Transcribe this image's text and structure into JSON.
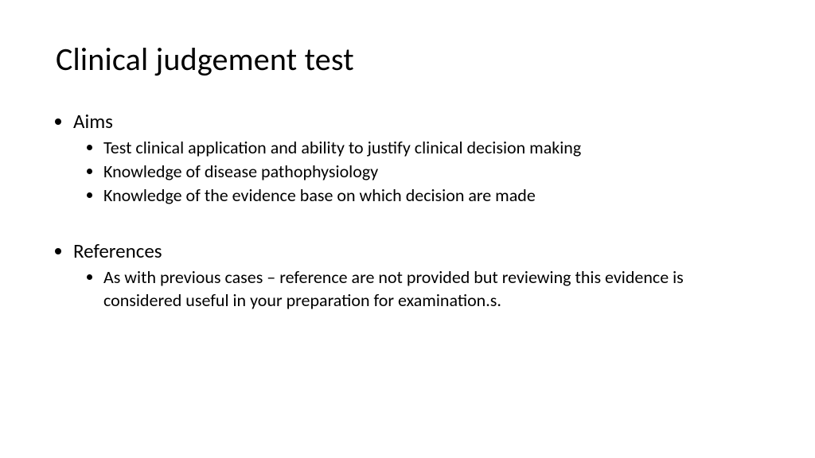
{
  "slide": {
    "title": "Clinical judgement test",
    "title_fontsize": 40,
    "title_color": "#000000",
    "background_color": "#ffffff",
    "body_font": "Calibri",
    "bullets": [
      {
        "label": "Aims",
        "fontsize": 25,
        "children": [
          {
            "label": "Test clinical application and ability to justify clinical decision making",
            "fontsize": 22
          },
          {
            "label": "Knowledge of disease pathophysiology",
            "fontsize": 22
          },
          {
            "label": "Knowledge of the evidence base on which decision are made",
            "fontsize": 22
          }
        ]
      },
      {
        "label": "References",
        "fontsize": 25,
        "children": [
          {
            "label": "As with previous cases – reference are not provided but reviewing this evidence is considered useful in your preparation for examination.s.",
            "fontsize": 22
          }
        ]
      }
    ]
  }
}
